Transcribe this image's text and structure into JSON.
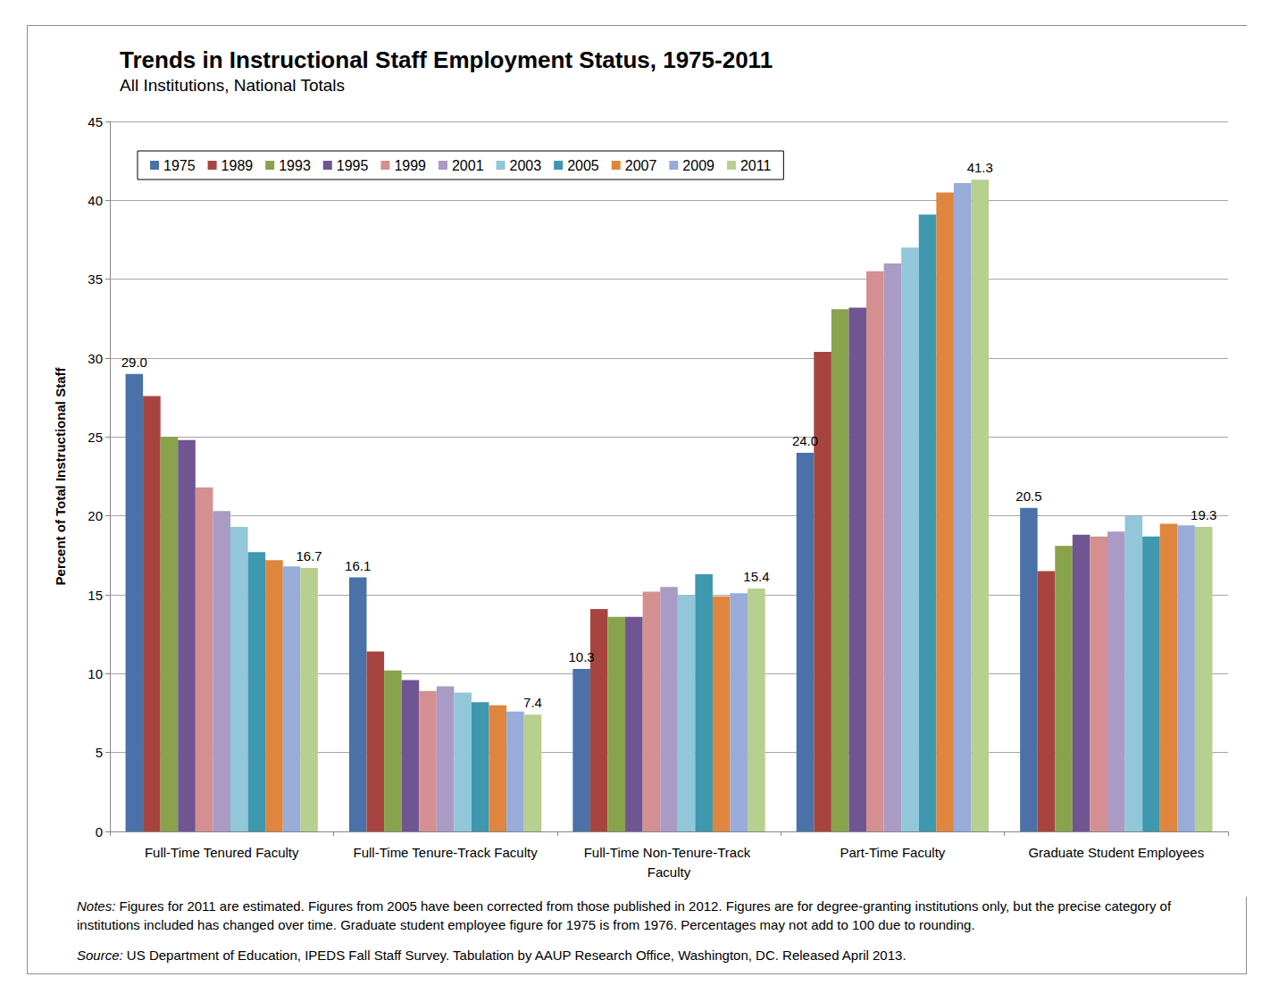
{
  "chart_data": {
    "type": "bar",
    "title": "Trends in Instructional Staff Employment Status, 1975-2011",
    "subtitle": "All Institutions, National Totals",
    "y_label": "Percent of Total Instructional Staff",
    "categories": [
      "Full-Time Tenured Faculty",
      "Full-Time Tenure-Track Faculty",
      "Full-Time Non-Tenure-Track Faculty",
      "Part-Time Faculty",
      "Graduate Student Employees"
    ],
    "series": [
      {
        "name": "1975",
        "color": "#4a72a8",
        "values": [
          29.0,
          16.1,
          10.3,
          24.0,
          20.5
        ],
        "data_labels": true,
        "value_labels": [
          "29.0",
          "16.1",
          "10.3",
          "24.0",
          "20.5"
        ]
      },
      {
        "name": "1989",
        "color": "#a84440",
        "values": [
          27.6,
          11.4,
          14.1,
          30.4,
          16.5
        ]
      },
      {
        "name": "1993",
        "color": "#89a24c",
        "values": [
          25.0,
          10.2,
          13.6,
          33.1,
          18.1
        ]
      },
      {
        "name": "1995",
        "color": "#6f5592",
        "values": [
          24.8,
          9.6,
          13.6,
          33.2,
          18.8
        ]
      },
      {
        "name": "1999",
        "color": "#d49090",
        "values": [
          21.8,
          8.9,
          15.2,
          35.5,
          18.7
        ]
      },
      {
        "name": "2001",
        "color": "#a99bc4",
        "values": [
          20.3,
          9.2,
          15.5,
          36.0,
          19.0
        ]
      },
      {
        "name": "2003",
        "color": "#92c6d9",
        "values": [
          19.3,
          8.8,
          15.0,
          37.0,
          20.0
        ]
      },
      {
        "name": "2005",
        "color": "#3e98ae",
        "values": [
          17.7,
          8.2,
          16.3,
          39.1,
          18.7
        ]
      },
      {
        "name": "2007",
        "color": "#e0853e",
        "values": [
          17.2,
          8.0,
          14.9,
          40.5,
          19.5
        ]
      },
      {
        "name": "2009",
        "color": "#98acd9",
        "values": [
          16.8,
          7.6,
          15.1,
          41.1,
          19.4
        ]
      },
      {
        "name": "2011",
        "color": "#b7cf8f",
        "values": [
          16.7,
          7.4,
          15.4,
          41.3,
          19.3
        ],
        "data_labels": true,
        "value_labels": [
          "16.7",
          "7.4",
          "15.4",
          "41.3",
          "19.3"
        ]
      }
    ],
    "ylim": [
      0,
      45
    ],
    "yticks": [
      0,
      5,
      10,
      15,
      20,
      25,
      30,
      35,
      40,
      45
    ],
    "grid": true,
    "legend": "top-left",
    "notes": {
      "label": "Notes:",
      "text": "Figures for 2011 are estimated. Figures from 2005 have been corrected from those published in 2012. Figures are for degree-granting institutions only, but the precise category of institutions included has changed over time. Graduate student employee figure for 1975 is from 1976. Percentages may not add to 100 due to rounding."
    },
    "source": {
      "label": "Source:",
      "text": "US Department of Education, IPEDS Fall Staff Survey. Tabulation by AAUP Research Office, Washington, DC. Released April 2013."
    }
  }
}
